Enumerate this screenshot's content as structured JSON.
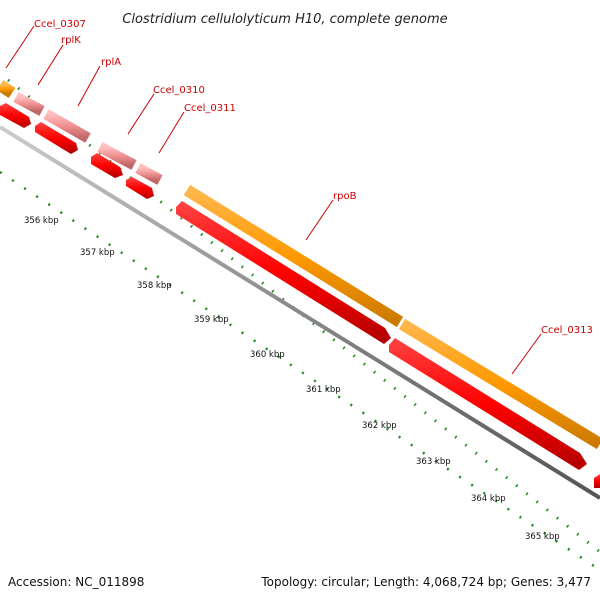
{
  "title": "Clostridium cellulolyticum H10, complete genome",
  "footer": {
    "accession": "Accession: NC_011898",
    "summary": "Topology: circular; Length: 4,068,724 bp; Genes: 3,477"
  },
  "colors": {
    "cds_red": "#ff0000",
    "gene_orange": "#ff9900",
    "rna_pink": "#f09090",
    "backbone_gray": "#888888",
    "tick_green": "#1a8c1a",
    "label_red": "#cc0000"
  },
  "gene_labels": [
    "Ccel_0307",
    "rplK",
    "rplA",
    "Ccel_0310",
    "Ccel_0311",
    "rpoB",
    "Ccel_0313"
  ],
  "kbp_labels": [
    "356 kbp",
    "357 kbp",
    "358 kbp",
    "359 kbp",
    "360 kbp",
    "361 kbp",
    "362 kbp",
    "363 kbp",
    "364 kbp",
    "365 kbp"
  ]
}
